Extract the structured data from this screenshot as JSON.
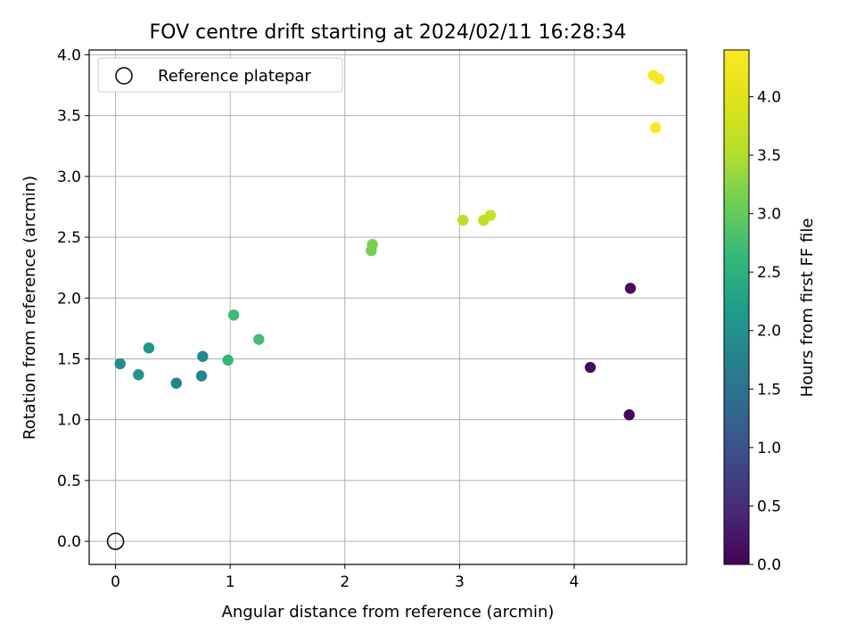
{
  "chart_data": {
    "type": "scatter",
    "title": "FOV centre drift starting at 2024/02/11 16:28:34",
    "xlabel": "Angular distance from reference (arcmin)",
    "ylabel": "Rotation from reference (arcmin)",
    "xlim": [
      -0.23,
      4.98
    ],
    "ylim": [
      -0.19,
      4.04
    ],
    "xticks": [
      0,
      1,
      2,
      3,
      4
    ],
    "xtick_labels": [
      "0",
      "1",
      "2",
      "3",
      "4"
    ],
    "yticks": [
      0.0,
      0.5,
      1.0,
      1.5,
      2.0,
      2.5,
      3.0,
      3.5,
      4.0
    ],
    "ytick_labels": [
      "0.0",
      "0.5",
      "1.0",
      "1.5",
      "2.0",
      "2.5",
      "3.0",
      "3.5",
      "4.0"
    ],
    "grid": true,
    "legend": {
      "placement": "top-left",
      "entries": [
        "Reference platepar"
      ]
    },
    "reference_point": {
      "x": 0,
      "y": 0
    },
    "colorbar": {
      "label": "Hours from first FF file",
      "range": [
        0.0,
        4.4
      ],
      "ticks": [
        0.0,
        0.5,
        1.0,
        1.5,
        2.0,
        2.5,
        3.0,
        3.5,
        4.0
      ],
      "tick_labels": [
        "0.0",
        "0.5",
        "1.0",
        "1.5",
        "2.0",
        "2.5",
        "3.0",
        "3.5",
        "4.0"
      ],
      "colormap": "viridis"
    },
    "points": [
      {
        "x": 4.48,
        "y": 1.04,
        "c": 0.05
      },
      {
        "x": 4.14,
        "y": 1.43,
        "c": 0.08
      },
      {
        "x": 4.49,
        "y": 2.08,
        "c": 0.15
      },
      {
        "x": 0.53,
        "y": 1.3,
        "c": 1.75
      },
      {
        "x": 0.75,
        "y": 1.36,
        "c": 1.8
      },
      {
        "x": 0.76,
        "y": 1.52,
        "c": 1.85
      },
      {
        "x": 0.04,
        "y": 1.46,
        "c": 1.95
      },
      {
        "x": 0.2,
        "y": 1.37,
        "c": 2.05
      },
      {
        "x": 0.29,
        "y": 1.59,
        "c": 2.1
      },
      {
        "x": 0.98,
        "y": 1.49,
        "c": 2.6
      },
      {
        "x": 1.03,
        "y": 1.86,
        "c": 2.7
      },
      {
        "x": 1.25,
        "y": 1.66,
        "c": 2.75
      },
      {
        "x": 2.23,
        "y": 2.39,
        "c": 3.1
      },
      {
        "x": 2.24,
        "y": 2.44,
        "c": 3.15
      },
      {
        "x": 3.03,
        "y": 2.64,
        "c": 3.6
      },
      {
        "x": 3.21,
        "y": 2.64,
        "c": 3.65
      },
      {
        "x": 3.27,
        "y": 2.68,
        "c": 3.7
      },
      {
        "x": 4.69,
        "y": 3.83,
        "c": 4.35
      },
      {
        "x": 4.74,
        "y": 3.8,
        "c": 4.35
      },
      {
        "x": 4.71,
        "y": 3.4,
        "c": 4.38
      }
    ]
  }
}
